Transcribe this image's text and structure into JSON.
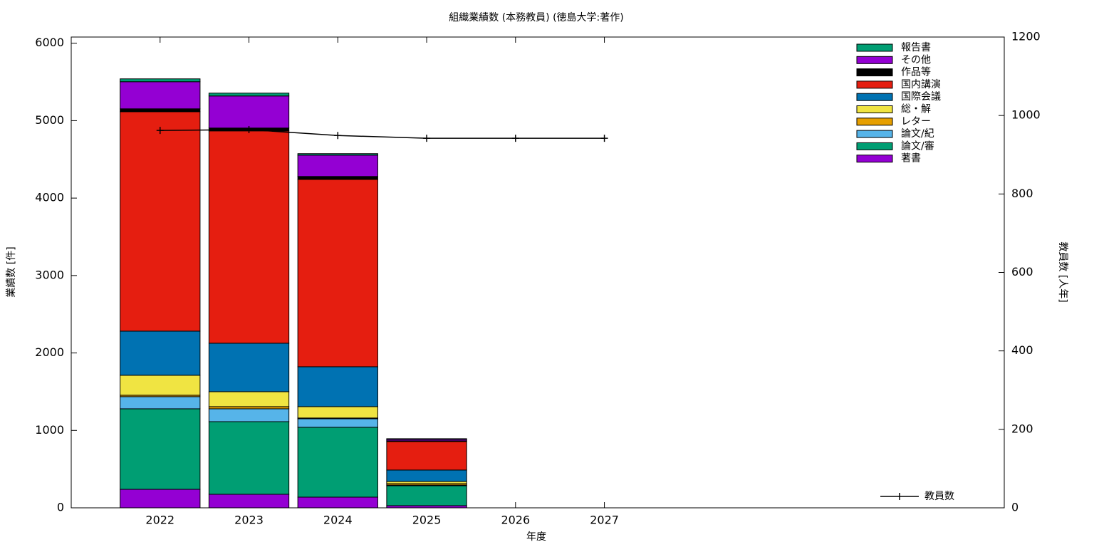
{
  "chart_data": {
    "type": "bar",
    "title": "組織業績数 (本務教員) (徳島大学:著作)",
    "xlabel": "年度",
    "ylabel": "業績数 [件]",
    "y2label": "教員数 [人年]",
    "x": [
      2022,
      2023,
      2024,
      2025,
      2026,
      2027
    ],
    "xlim": [
      2021,
      2031.5
    ],
    "xticks": [
      2022,
      2023,
      2024,
      2025,
      2026,
      2027
    ],
    "ylim": [
      0,
      6080
    ],
    "yticks": [
      0,
      1000,
      2000,
      3000,
      4000,
      5000,
      6000
    ],
    "y2lim": [
      0,
      1200
    ],
    "y2ticks": [
      0,
      200,
      400,
      600,
      800,
      1000,
      1200
    ],
    "stacked": true,
    "series": [
      {
        "name": "著書",
        "color": "#9400d3",
        "values": [
          239,
          175,
          138,
          28,
          null,
          null
        ]
      },
      {
        "name": "論文/審",
        "color": "#009e73",
        "values": [
          1040,
          938,
          902,
          257,
          null,
          null
        ]
      },
      {
        "name": "論文/紀",
        "color": "#56b4e9",
        "values": [
          157,
          166,
          110,
          9,
          null,
          null
        ]
      },
      {
        "name": "レター",
        "color": "#e69f00",
        "values": [
          18,
          28,
          10,
          19,
          null,
          null
        ]
      },
      {
        "name": "総・解",
        "color": "#f0e442",
        "values": [
          258,
          193,
          147,
          27,
          null,
          null
        ]
      },
      {
        "name": "国際会議",
        "color": "#0072b2",
        "values": [
          570,
          626,
          515,
          148,
          null,
          null
        ]
      },
      {
        "name": "国内講演",
        "color": "#e51e10",
        "values": [
          2834,
          2742,
          2420,
          368,
          null,
          null
        ]
      },
      {
        "name": "作品等",
        "color": "#000000",
        "values": [
          37,
          37,
          37,
          9,
          null,
          null
        ]
      },
      {
        "name": "その他",
        "color": "#9400d3",
        "values": [
          350,
          414,
          276,
          18,
          null,
          null
        ]
      },
      {
        "name": "報告書",
        "color": "#009e73",
        "values": [
          37,
          37,
          19,
          10,
          null,
          null
        ]
      },
      {
        "name": "教員数",
        "color": "#000000",
        "type": "line",
        "axis": "y2",
        "values": [
          962,
          964,
          949,
          942,
          942,
          942
        ]
      }
    ]
  }
}
